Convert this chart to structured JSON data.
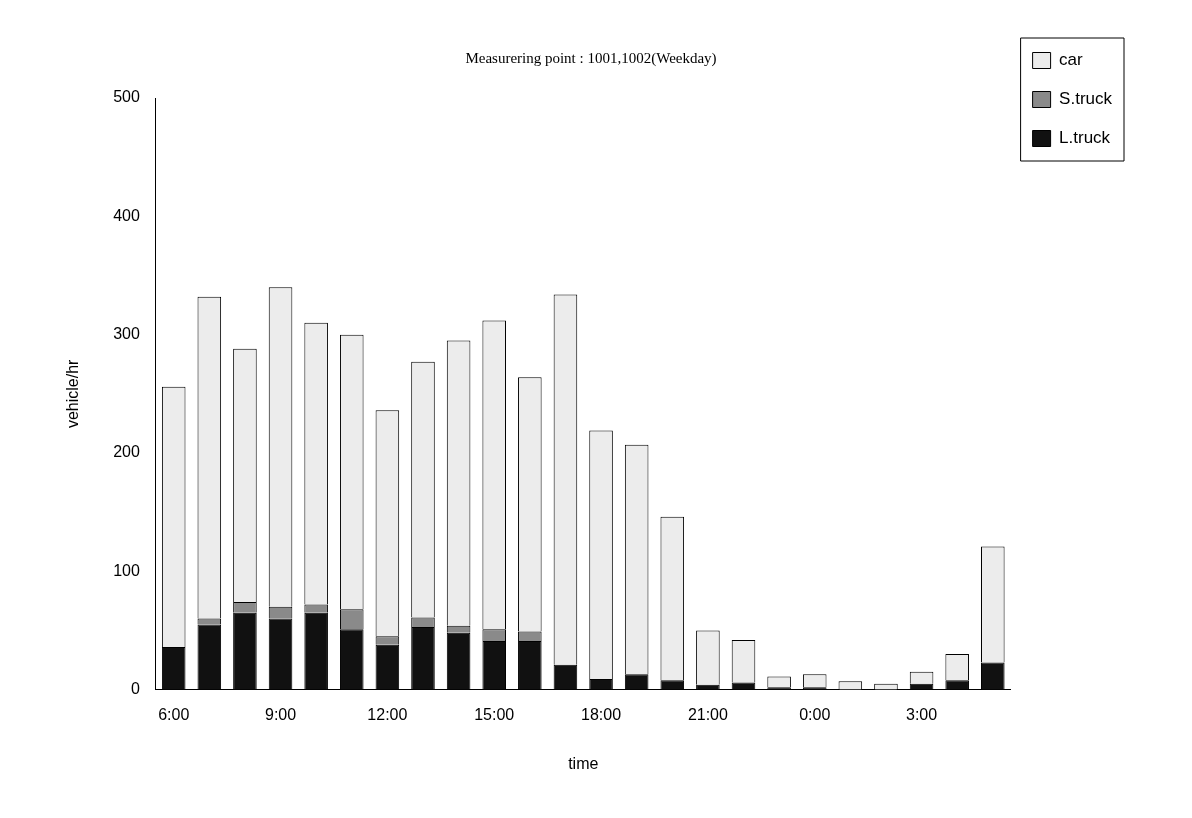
{
  "chart_data": {
    "type": "bar",
    "stacked": true,
    "title": "Measurering point : 1001,1002(Weekday)",
    "xlabel": "time",
    "ylabel": "vehicle/hr",
    "categories": [
      "6:00",
      null,
      null,
      "9:00",
      null,
      null,
      "12:00",
      null,
      null,
      "15:00",
      null,
      null,
      "18:00",
      null,
      null,
      "21:00",
      null,
      null,
      "0:00",
      null,
      null,
      "3:00",
      null,
      null
    ],
    "series": [
      {
        "name": "L.truck",
        "color": "#111111",
        "values": [
          36,
          55,
          65,
          60,
          65,
          51,
          38,
          53,
          48,
          41,
          41,
          21,
          9,
          13,
          8,
          4,
          6,
          2,
          2,
          null,
          null,
          5,
          8,
          23
        ]
      },
      {
        "name": "S.truck",
        "color": "#8a8a8a",
        "values": [
          0,
          5,
          9,
          10,
          7,
          17,
          7,
          8,
          6,
          10,
          8,
          0,
          0,
          0,
          0,
          0,
          0,
          0,
          0,
          0,
          0,
          0,
          0,
          0
        ]
      },
      {
        "name": "car",
        "color": "#ececec",
        "values": [
          220,
          272,
          214,
          270,
          238,
          232,
          191,
          216,
          241,
          261,
          215,
          313,
          210,
          194,
          138,
          46,
          36,
          9,
          11,
          7,
          5,
          10,
          22,
          98
        ]
      }
    ],
    "ylim": [
      0,
      500
    ],
    "yticks": [
      0,
      100,
      200,
      300,
      400,
      500
    ],
    "grid": false,
    "legend": "top right"
  }
}
